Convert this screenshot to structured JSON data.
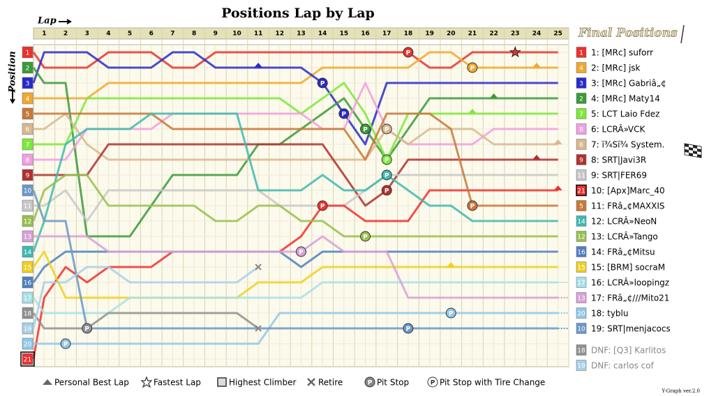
{
  "chart_data": {
    "type": "lap-chart",
    "title": "Positions Lap by Lap",
    "x_label": "Lap",
    "y_label": "Position",
    "side_title": "Final Positions",
    "pit_symbol": "P",
    "footer": "Y-Graph ver.2.0",
    "x": [
      0,
      1,
      2,
      3,
      4,
      5,
      6,
      7,
      8,
      9,
      10,
      11,
      12,
      13,
      14,
      15,
      16,
      17,
      18,
      19,
      20,
      21,
      22,
      23,
      24,
      25
    ],
    "xlim": [
      0,
      25
    ],
    "ylim": [
      1,
      21
    ],
    "yticks": [
      1,
      2,
      3,
      4,
      5,
      6,
      7,
      8,
      9,
      10,
      11,
      12,
      13,
      14,
      15,
      16,
      17,
      18,
      19,
      20,
      21
    ],
    "series": [
      {
        "name": "1: [MRc] suforr",
        "color": "#e8322e",
        "values": [
          1,
          2,
          2,
          2,
          1,
          1,
          1,
          2,
          2,
          1,
          1,
          1,
          1,
          1,
          1,
          1,
          1,
          1,
          1,
          2,
          2,
          1,
          1,
          1,
          1,
          1
        ]
      },
      {
        "name": "2: [MRc] jsk",
        "color": "#f0a830",
        "values": [
          4,
          4,
          4,
          4,
          3,
          3,
          3,
          3,
          3,
          3,
          3,
          3,
          3,
          3,
          2,
          2,
          2,
          2,
          2,
          1,
          1,
          2,
          2,
          2,
          2,
          2
        ]
      },
      {
        "name": "3: [MRc] Gabriâ„¢",
        "color": "#2a2ac8",
        "values": [
          3,
          1,
          1,
          1,
          2,
          2,
          2,
          1,
          1,
          2,
          2,
          2,
          2,
          2,
          3,
          5,
          7,
          3,
          3,
          3,
          3,
          3,
          3,
          3,
          3,
          3
        ]
      },
      {
        "name": "4: [MRc] Maty14",
        "color": "#3a9a3a",
        "values": [
          2,
          3,
          3,
          13,
          13,
          13,
          11,
          9,
          9,
          9,
          9,
          7,
          7,
          6,
          5,
          4,
          6,
          8,
          6,
          4,
          4,
          4,
          4,
          4,
          4,
          4
        ]
      },
      {
        "name": "5: LCT Laio Fdez",
        "color": "#7ee83a",
        "values": [
          7,
          7,
          7,
          4,
          4,
          4,
          4,
          4,
          4,
          4,
          4,
          4,
          4,
          5,
          4,
          3,
          5,
          8,
          5,
          5,
          5,
          5,
          5,
          5,
          5,
          5
        ]
      },
      {
        "name": "6: LCRÂ»VCK",
        "color": "#f0a0e0",
        "values": [
          8,
          8,
          8,
          6,
          6,
          6,
          6,
          5,
          5,
          5,
          5,
          5,
          5,
          5,
          6,
          6,
          3,
          6,
          7,
          7,
          7,
          7,
          6,
          6,
          6,
          6
        ]
      },
      {
        "name": "7: ï¾Sï¾ System.",
        "color": "#d8b890",
        "values": [
          6,
          6,
          5,
          7,
          8,
          8,
          8,
          8,
          8,
          8,
          8,
          8,
          8,
          8,
          8,
          8,
          8,
          6,
          7,
          6,
          6,
          6,
          7,
          7,
          7,
          7
        ]
      },
      {
        "name": "8: SRT|Javi3R",
        "color": "#b03030",
        "values": [
          9,
          9,
          9,
          9,
          7,
          7,
          7,
          7,
          7,
          7,
          7,
          7,
          7,
          7,
          7,
          9,
          11,
          10,
          8,
          8,
          8,
          8,
          8,
          8,
          8,
          8
        ]
      },
      {
        "name": "9: SRT|FER69",
        "color": "#c8c8c8",
        "values": [
          11,
          11,
          10,
          12,
          10,
          10,
          10,
          10,
          10,
          10,
          10,
          10,
          11,
          11,
          11,
          11,
          10,
          9,
          9,
          9,
          9,
          9,
          9,
          9,
          9,
          9
        ]
      },
      {
        "name": "10: [Apx]Marc_40",
        "color": "#f03030",
        "values": [
          21,
          17,
          15,
          16,
          15,
          15,
          15,
          14,
          14,
          14,
          14,
          14,
          14,
          13,
          11,
          11,
          12,
          12,
          12,
          10,
          10,
          10,
          10,
          10,
          10,
          10
        ]
      },
      {
        "name": "11: FRâ„¢MAXXIS",
        "color": "#c87838",
        "values": [
          5,
          5,
          5,
          5,
          5,
          5,
          5,
          6,
          6,
          6,
          6,
          6,
          6,
          6,
          6,
          6,
          8,
          5,
          5,
          5,
          6,
          11,
          11,
          11,
          11,
          11
        ]
      },
      {
        "name": "12: LCRÂ»NeoN",
        "color": "#40b8b0",
        "values": [
          14,
          12,
          7,
          6,
          6,
          6,
          5,
          5,
          5,
          5,
          5,
          10,
          10,
          10,
          9,
          10,
          10,
          9,
          10,
          11,
          11,
          12,
          12,
          12,
          12,
          12
        ]
      },
      {
        "name": "13: LCRÂ»Tango",
        "color": "#98c050",
        "values": [
          12,
          10,
          9,
          9,
          11,
          11,
          11,
          11,
          11,
          12,
          12,
          11,
          11,
          12,
          12,
          13,
          13,
          13,
          13,
          13,
          13,
          13,
          13,
          13,
          13,
          13
        ]
      },
      {
        "name": "14: FRâ„¢Mitsu",
        "color": "#5080c0",
        "values": [
          16,
          15,
          14,
          14,
          14,
          14,
          14,
          14,
          14,
          14,
          14,
          14,
          14,
          15,
          14,
          14,
          14,
          14,
          14,
          14,
          14,
          14,
          14,
          14,
          14,
          14
        ]
      },
      {
        "name": "15: [BRM] socraM",
        "color": "#f0d020",
        "values": [
          15,
          14,
          17,
          17,
          17,
          17,
          17,
          17,
          17,
          17,
          17,
          16,
          16,
          16,
          15,
          15,
          15,
          15,
          15,
          15,
          15,
          15,
          15,
          15,
          15,
          15
        ]
      },
      {
        "name": "16: LCRÂ»loopingz",
        "color": "#a8e0e8",
        "values": [
          17,
          18,
          18,
          18,
          18,
          17,
          17,
          17,
          17,
          17,
          17,
          17,
          17,
          17,
          16,
          16,
          16,
          16,
          16,
          16,
          16,
          16,
          16,
          16,
          16,
          16
        ]
      },
      {
        "name": "17: FRâ„¢///Mito21",
        "color": "#d8a0d8",
        "values": [
          13,
          13,
          13,
          13,
          14,
          14,
          14,
          14,
          14,
          14,
          14,
          14,
          14,
          14,
          13,
          14,
          14,
          14,
          17,
          17,
          17,
          17,
          17,
          17,
          17,
          17
        ]
      },
      {
        "name": "18: tyblu",
        "color": "#90c8e8",
        "values": [
          20,
          20,
          20,
          20,
          20,
          20,
          20,
          20,
          20,
          20,
          20,
          20,
          18,
          18,
          18,
          18,
          18,
          18,
          18,
          18,
          18,
          18,
          18,
          18,
          18,
          18
        ]
      },
      {
        "name": "19: SRT|menjacocs",
        "color": "#6a98c8",
        "values": [
          10,
          12,
          12,
          19,
          19,
          19,
          19,
          19,
          19,
          19,
          19,
          19,
          19,
          19,
          19,
          19,
          19,
          19,
          19,
          19,
          19,
          19,
          19,
          19,
          19,
          19
        ]
      },
      {
        "name": "DNF: [Q3] Karlitos",
        "color": "#909090",
        "values": [
          18,
          19,
          19,
          19,
          18,
          18,
          18,
          18,
          18,
          18,
          18,
          19,
          null,
          null,
          null,
          null,
          null,
          null,
          null,
          null,
          null,
          null,
          null,
          null,
          null,
          null
        ]
      },
      {
        "name": "DNF: carlos cof",
        "color": "#a8d0e8",
        "values": [
          19,
          16,
          16,
          15,
          15,
          16,
          16,
          16,
          16,
          16,
          16,
          15,
          null,
          null,
          null,
          null,
          null,
          null,
          null,
          null,
          null,
          null,
          null,
          null,
          null,
          null
        ]
      }
    ],
    "highest_climber": 9,
    "events": [
      {
        "kind": "pit",
        "series": 0,
        "lap": 18
      },
      {
        "kind": "pit",
        "series": 1,
        "lap": 21
      },
      {
        "kind": "pit",
        "series": 2,
        "lap": 14
      },
      {
        "kind": "pit",
        "series": 2,
        "lap": 15
      },
      {
        "kind": "pit",
        "series": 3,
        "lap": 16
      },
      {
        "kind": "pit",
        "series": 4,
        "lap": 17
      },
      {
        "kind": "pit",
        "series": 6,
        "lap": 17
      },
      {
        "kind": "pit",
        "series": 7,
        "lap": 17
      },
      {
        "kind": "pit",
        "series": 9,
        "lap": 14
      },
      {
        "kind": "pit",
        "series": 10,
        "lap": 21
      },
      {
        "kind": "pit",
        "series": 11,
        "lap": 17
      },
      {
        "kind": "pit",
        "series": 12,
        "lap": 16
      },
      {
        "kind": "pit",
        "series": 16,
        "lap": 13
      },
      {
        "kind": "pit",
        "series": 17,
        "lap": 20
      },
      {
        "kind": "pit",
        "series": 18,
        "lap": 18
      },
      {
        "kind": "pit",
        "series": 17,
        "lap": 2
      },
      {
        "kind": "pit",
        "series": 19,
        "lap": 3
      },
      {
        "kind": "fastest",
        "series": 0,
        "lap": 23
      },
      {
        "kind": "best",
        "series": 2,
        "lap": 11
      },
      {
        "kind": "best",
        "series": 1,
        "lap": 24
      },
      {
        "kind": "best",
        "series": 3,
        "lap": 22
      },
      {
        "kind": "best",
        "series": 4,
        "lap": 21
      },
      {
        "kind": "best",
        "series": 6,
        "lap": 25
      },
      {
        "kind": "best",
        "series": 7,
        "lap": 24
      },
      {
        "kind": "best",
        "series": 9,
        "lap": 25
      },
      {
        "kind": "best",
        "series": 14,
        "lap": 20
      },
      {
        "kind": "retire",
        "series": 19,
        "lap": 11
      },
      {
        "kind": "retire",
        "series": 20,
        "lap": 11
      }
    ],
    "legend": [
      "Personal Best Lap",
      "Fastest Lap",
      "Highest Climber",
      "Retire",
      "Pit Stop",
      "Pit Stop with Tire Change"
    ]
  }
}
